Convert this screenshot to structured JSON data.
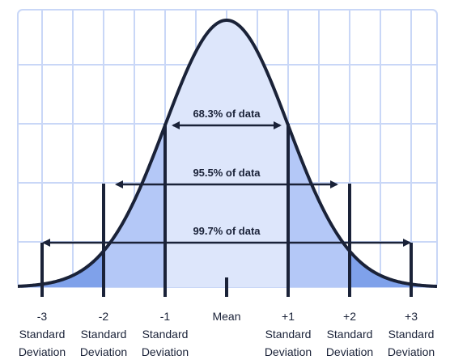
{
  "bands": [
    {
      "label": "68.3% of data",
      "from_sd": -1,
      "to_sd": 1
    },
    {
      "label": "95.5% of data",
      "from_sd": -2,
      "to_sd": 2
    },
    {
      "label": "99.7% of data",
      "from_sd": -3,
      "to_sd": 3
    }
  ],
  "axis": {
    "mean_label": "Mean",
    "sd_word_1": "Standard",
    "sd_word_2": "Deviation",
    "ticks": [
      {
        "sd": -3,
        "label": "-3"
      },
      {
        "sd": -2,
        "label": "-2"
      },
      {
        "sd": -1,
        "label": "-1"
      },
      {
        "sd": 0,
        "label": "Mean"
      },
      {
        "sd": 1,
        "label": "+1"
      },
      {
        "sd": 2,
        "label": "+2"
      },
      {
        "sd": 3,
        "label": "+3"
      }
    ]
  },
  "colors": {
    "outline": "#1a2238",
    "grid": "#c9d7f7",
    "region_center": "#dde6fb",
    "region_mid": "#b4c8f7",
    "region_tail": "#7fa1ea",
    "band_text": "#1a2238"
  }
}
